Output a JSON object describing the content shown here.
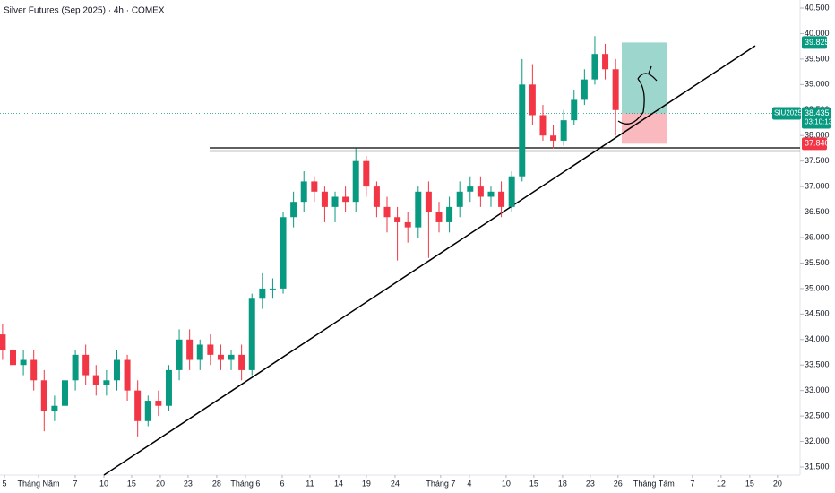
{
  "chart_data": {
    "type": "candlestick",
    "title": "Silver Futures (Sep 2025) · 4h · COMEX",
    "up_color": "#089981",
    "down_color": "#f23645",
    "open": [
      34.1,
      33.8,
      33.5,
      33.6,
      33.2,
      32.6,
      32.7,
      33.2,
      33.7,
      33.3,
      33.1,
      33.2,
      33.6,
      33.0,
      32.4,
      32.8,
      32.7,
      33.4,
      34.0,
      33.6,
      33.9,
      33.7,
      33.6,
      33.7,
      33.4,
      34.8,
      35.0,
      35.0,
      36.4,
      36.7,
      37.1,
      36.9,
      36.6,
      36.8,
      36.7,
      37.5,
      37.0,
      36.6,
      36.4,
      36.3,
      36.2,
      36.9,
      36.5,
      36.3,
      36.6,
      36.9,
      37.0,
      36.8,
      36.9,
      36.6,
      37.2,
      39.0,
      38.4,
      38.0,
      37.9,
      38.3,
      38.7,
      39.1,
      39.6,
      39.3
    ],
    "high": [
      34.3,
      34.0,
      33.8,
      33.8,
      33.4,
      32.9,
      33.3,
      33.8,
      33.9,
      33.5,
      33.4,
      33.8,
      33.7,
      33.2,
      32.9,
      33.0,
      33.5,
      34.2,
      34.2,
      34.0,
      34.1,
      33.9,
      33.8,
      33.9,
      34.9,
      35.3,
      35.2,
      36.5,
      36.9,
      37.3,
      37.2,
      37.0,
      36.9,
      37.0,
      37.75,
      37.6,
      37.1,
      36.8,
      36.6,
      36.5,
      37.0,
      37.1,
      36.7,
      36.8,
      37.1,
      37.2,
      37.2,
      37.0,
      37.1,
      37.3,
      39.5,
      39.4,
      38.6,
      38.2,
      38.5,
      38.9,
      39.3,
      39.95,
      39.8,
      39.5
    ],
    "low": [
      33.6,
      33.3,
      33.3,
      33.0,
      32.2,
      32.4,
      32.5,
      33.0,
      33.1,
      32.9,
      32.9,
      33.0,
      32.8,
      32.1,
      32.3,
      32.5,
      32.6,
      33.2,
      33.4,
      33.4,
      33.5,
      33.4,
      33.4,
      33.2,
      33.3,
      34.6,
      34.8,
      34.9,
      36.2,
      36.5,
      36.7,
      36.3,
      36.3,
      36.5,
      36.5,
      36.8,
      36.4,
      36.1,
      35.55,
      35.9,
      36.0,
      35.6,
      36.1,
      36.1,
      36.4,
      36.7,
      36.6,
      36.6,
      36.4,
      36.5,
      37.1,
      38.2,
      37.9,
      37.75,
      37.8,
      38.2,
      38.6,
      39.0,
      39.1,
      38.0
    ],
    "close": [
      33.8,
      33.5,
      33.6,
      33.2,
      32.6,
      32.7,
      33.2,
      33.7,
      33.3,
      33.1,
      33.2,
      33.6,
      33.0,
      32.4,
      32.8,
      32.7,
      33.4,
      34.0,
      33.6,
      33.9,
      33.7,
      33.6,
      33.7,
      33.4,
      34.8,
      35.0,
      35.0,
      36.4,
      36.7,
      37.1,
      36.9,
      36.6,
      36.8,
      36.7,
      37.5,
      37.0,
      36.6,
      36.4,
      36.3,
      36.2,
      36.9,
      36.5,
      36.3,
      36.6,
      36.9,
      37.0,
      36.8,
      36.9,
      36.6,
      37.2,
      39.0,
      38.4,
      38.0,
      37.9,
      38.3,
      38.7,
      39.1,
      39.6,
      39.3,
      38.5
    ],
    "xlim": [
      -0.25,
      76.75
    ],
    "xticks": [
      {
        "value": 0.18,
        "label": "5"
      },
      {
        "value": 3.46,
        "label": "Tháng Năm"
      },
      {
        "value": 6.99,
        "label": "7"
      },
      {
        "value": 9.75,
        "label": "10"
      },
      {
        "value": 12.42,
        "label": "15"
      },
      {
        "value": 15.18,
        "label": "20"
      },
      {
        "value": 17.85,
        "label": "23"
      },
      {
        "value": 20.61,
        "label": "28"
      },
      {
        "value": 23.37,
        "label": "Tháng 6"
      },
      {
        "value": 26.91,
        "label": "6"
      },
      {
        "value": 29.58,
        "label": "11"
      },
      {
        "value": 32.34,
        "label": "14"
      },
      {
        "value": 35.01,
        "label": "19"
      },
      {
        "value": 37.77,
        "label": "24"
      },
      {
        "value": 42.16,
        "label": "Tháng 7"
      },
      {
        "value": 44.92,
        "label": "4"
      },
      {
        "value": 48.46,
        "label": "10"
      },
      {
        "value": 51.13,
        "label": "15"
      },
      {
        "value": 53.89,
        "label": "18"
      },
      {
        "value": 56.56,
        "label": "23"
      },
      {
        "value": 59.23,
        "label": "26"
      },
      {
        "value": 62.68,
        "label": "Tháng Tám"
      },
      {
        "value": 66.39,
        "label": "7"
      },
      {
        "value": 69.15,
        "label": "12"
      },
      {
        "value": 71.91,
        "label": "15"
      },
      {
        "value": 74.58,
        "label": "20"
      }
    ],
    "ylim": [
      31.5,
      40.5
    ],
    "yticks": [
      {
        "value": 31.5,
        "label": "31.500"
      },
      {
        "value": 32,
        "label": "32.000"
      },
      {
        "value": 32.5,
        "label": "32.500"
      },
      {
        "value": 33,
        "label": "33.000"
      },
      {
        "value": 33.5,
        "label": "33.500"
      },
      {
        "value": 34,
        "label": "34.000"
      },
      {
        "value": 34.5,
        "label": "34.500"
      },
      {
        "value": 35,
        "label": "35.000"
      },
      {
        "value": 35.5,
        "label": "35.500"
      },
      {
        "value": 36,
        "label": "36.000"
      },
      {
        "value": 36.5,
        "label": "36.500"
      },
      {
        "value": 37,
        "label": "37.000"
      },
      {
        "value": 37.5,
        "label": "37.500"
      },
      {
        "value": 38,
        "label": "38.000"
      },
      {
        "value": 38.5,
        "label": "38.500"
      },
      {
        "value": 39,
        "label": "39.000"
      },
      {
        "value": 39.5,
        "label": "39.500"
      },
      {
        "value": 40,
        "label": "40.000"
      },
      {
        "value": 40.5,
        "label": "40.500"
      }
    ],
    "current_price": {
      "symbol": "SIU2025",
      "value": 38.435,
      "label": "38.435",
      "countdown": "03:10:13"
    },
    "target": {
      "value": 39.825,
      "label": "39.825"
    },
    "stop": {
      "value": 37.84,
      "label": "37.840"
    }
  }
}
